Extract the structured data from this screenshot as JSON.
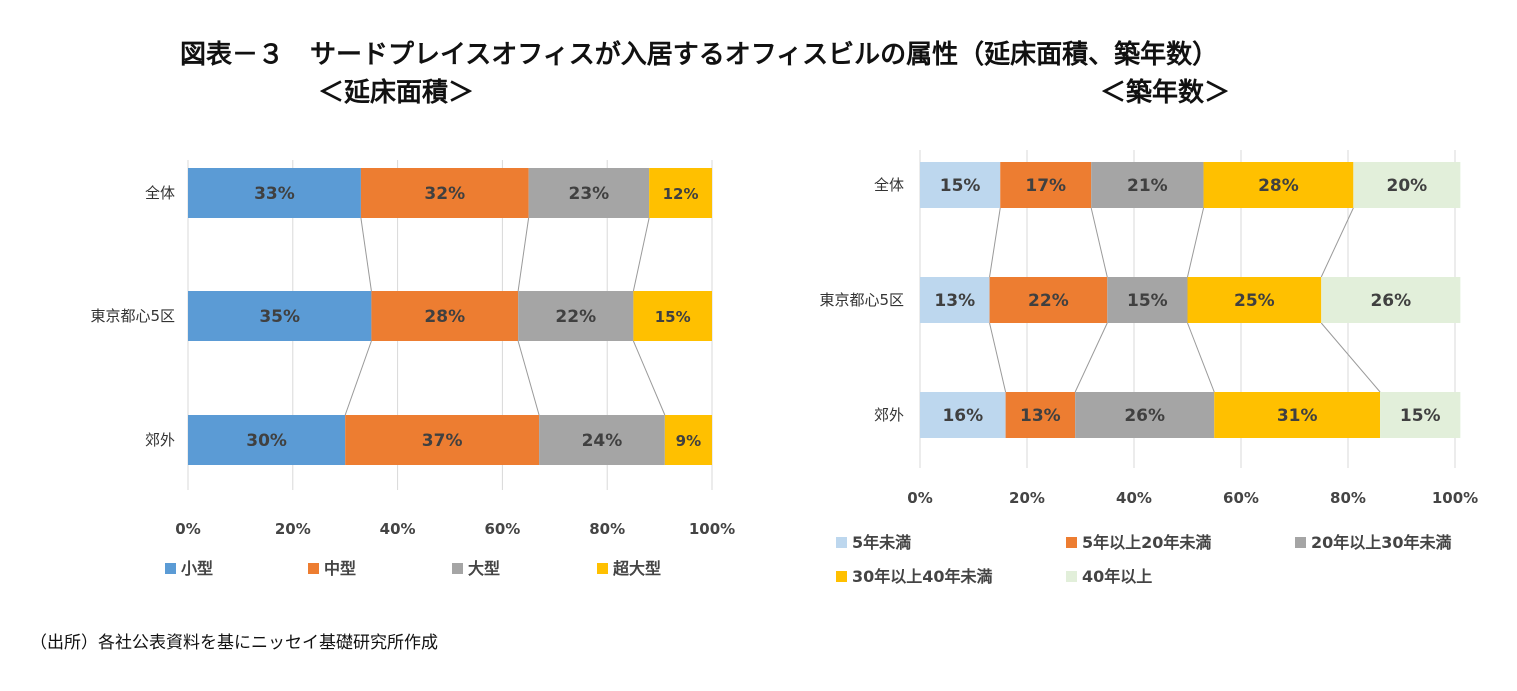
{
  "header": {
    "title": "図表－３　サードプレイスオフィスが入居するオフィスビルの属性（延床面積、築年数）"
  },
  "source": "（出所）各社公表資料を基にニッセイ基礎研究所作成",
  "colors": {
    "blue": "#5b9bd5",
    "orange": "#ed7d31",
    "gray": "#a5a5a5",
    "yellow": "#ffc000",
    "light_blue": "#bdd7ee",
    "light_green": "#e2efda"
  },
  "chart_data": [
    {
      "type": "bar",
      "orientation": "horizontal",
      "stacked": "percent",
      "subtitle": "＜延床面積＞",
      "categories": [
        "全体",
        "東京都心5区",
        "郊外"
      ],
      "xlim": [
        0,
        100
      ],
      "x_ticks": [
        "0%",
        "20%",
        "40%",
        "60%",
        "80%",
        "100%"
      ],
      "grid": true,
      "legend_position": "bottom",
      "series": [
        {
          "name": "小型",
          "values": [
            33,
            35,
            30
          ],
          "labels": [
            "33%",
            "35%",
            "30%"
          ],
          "color": "#5b9bd5"
        },
        {
          "name": "中型",
          "values": [
            32,
            28,
            37
          ],
          "labels": [
            "32%",
            "28%",
            "37%"
          ],
          "color": "#ed7d31"
        },
        {
          "name": "大型",
          "values": [
            23,
            22,
            24
          ],
          "labels": [
            "23%",
            "22%",
            "24%"
          ],
          "color": "#a5a5a5"
        },
        {
          "name": "超大型",
          "values": [
            12,
            15,
            9
          ],
          "labels": [
            "12%",
            "15%",
            "9%"
          ],
          "color": "#ffc000"
        }
      ]
    },
    {
      "type": "bar",
      "orientation": "horizontal",
      "stacked": "percent",
      "subtitle": "＜築年数＞",
      "categories": [
        "全体",
        "東京都心5区",
        "郊外"
      ],
      "xlim": [
        0,
        100
      ],
      "x_ticks": [
        "0%",
        "20%",
        "40%",
        "60%",
        "80%",
        "100%"
      ],
      "grid": true,
      "legend_position": "bottom",
      "series": [
        {
          "name": "5年未満",
          "values": [
            15,
            13,
            16
          ],
          "labels": [
            "15%",
            "13%",
            "16%"
          ],
          "color": "#bdd7ee"
        },
        {
          "name": "5年以上20年未満",
          "values": [
            17,
            22,
            13
          ],
          "labels": [
            "17%",
            "22%",
            "13%"
          ],
          "color": "#ed7d31"
        },
        {
          "name": "20年以上30年未満",
          "values": [
            21,
            15,
            26
          ],
          "labels": [
            "21%",
            "15%",
            "26%"
          ],
          "color": "#a5a5a5"
        },
        {
          "name": "30年以上40年未満",
          "values": [
            28,
            25,
            31
          ],
          "labels": [
            "28%",
            "25%",
            "31%"
          ],
          "color": "#ffc000"
        },
        {
          "name": "40年以上",
          "values": [
            20,
            26,
            15
          ],
          "labels": [
            "20%",
            "26%",
            "15%"
          ],
          "color": "#e2efda"
        }
      ]
    }
  ]
}
